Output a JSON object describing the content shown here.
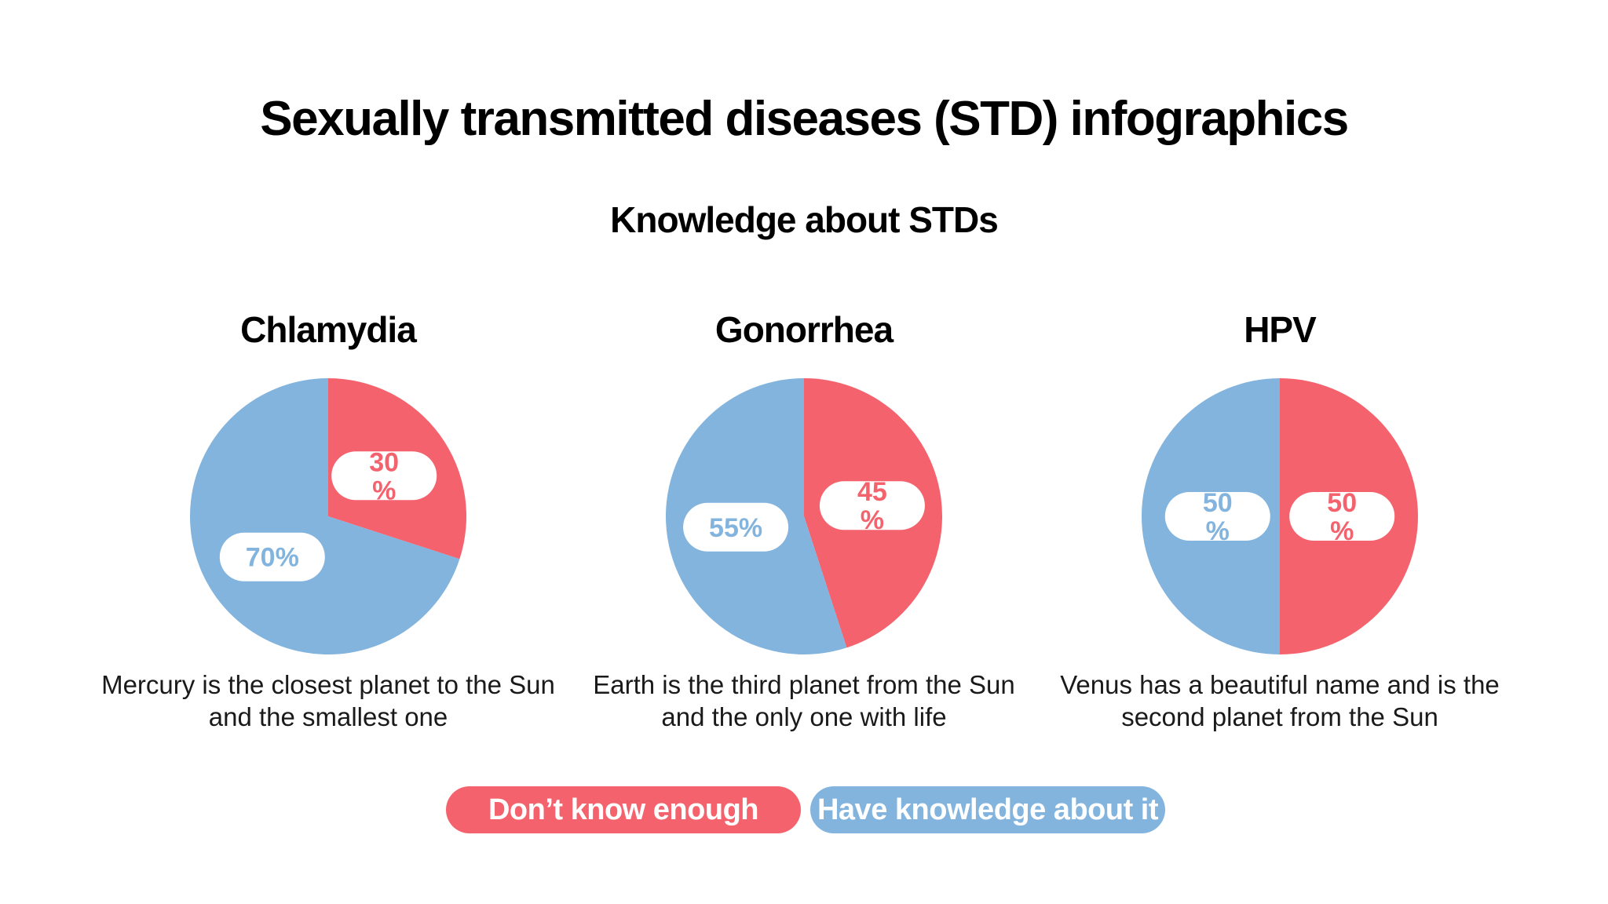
{
  "title": "Sexually transmitted diseases (STD) infographics",
  "subtitle": "Knowledge about STDs",
  "colors": {
    "dont_know": "#F4636D",
    "have_knowledge": "#82B4DE",
    "label_bg": "#FFFFFF"
  },
  "legend": {
    "dont_know_label": "Don’t know enough",
    "have_knowledge_label": "Have knowledge about it"
  },
  "chart_data": [
    {
      "type": "pie",
      "title": "Chlamydia",
      "categories": [
        "Don’t know enough",
        "Have knowledge about it"
      ],
      "values": [
        30,
        70
      ],
      "labels": [
        "30\n%",
        "70%"
      ],
      "description": "Mercury is the closest planet to the Sun and the smallest one"
    },
    {
      "type": "pie",
      "title": "Gonorrhea",
      "categories": [
        "Don’t know enough",
        "Have knowledge about it"
      ],
      "values": [
        45,
        55
      ],
      "labels": [
        "45\n%",
        "55%"
      ],
      "description": "Earth is the third planet from the Sun and the only one with life"
    },
    {
      "type": "pie",
      "title": "HPV",
      "categories": [
        "Don’t know enough",
        "Have knowledge about it"
      ],
      "values": [
        50,
        50
      ],
      "labels": [
        "50\n%",
        "50\n%"
      ],
      "description": "Venus has a beautiful name and is the second planet from the Sun"
    }
  ]
}
